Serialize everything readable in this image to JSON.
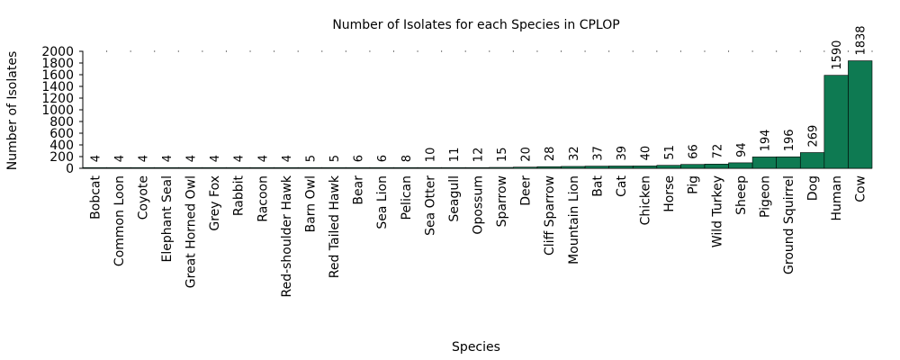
{
  "chart_data": {
    "type": "bar",
    "title": "Number of Isolates for each Species in CPLOP",
    "xlabel": "Species",
    "ylabel": "Number of Isolates",
    "ylim": [
      0,
      2000
    ],
    "yticks": [
      0,
      200,
      400,
      600,
      800,
      1000,
      1200,
      1400,
      1600,
      1800,
      2000
    ],
    "grid": "dotted-top",
    "bar_color": "#0e7a52",
    "categories": [
      "Bobcat",
      "Common Loon",
      "Coyote",
      "Elephant Seal",
      "Great Horned Owl",
      "Grey Fox",
      "Rabbit",
      "Racoon",
      "Red-shoulder Hawk",
      "Barn Owl",
      "Red Tailed Hawk",
      "Bear",
      "Sea Lion",
      "Pelican",
      "Sea Otter",
      "Seagull",
      "Opossum",
      "Sparrow",
      "Deer",
      "Cliff Sparrow",
      "Mountain Lion",
      "Bat",
      "Cat",
      "Chicken",
      "Horse",
      "Pig",
      "Wild Turkey",
      "Sheep",
      "Pigeon",
      "Ground Squirrel",
      "Dog",
      "Human",
      "Cow"
    ],
    "values": [
      4,
      4,
      4,
      4,
      4,
      4,
      4,
      4,
      4,
      5,
      5,
      6,
      6,
      8,
      10,
      11,
      12,
      15,
      20,
      28,
      32,
      37,
      39,
      40,
      51,
      66,
      72,
      94,
      194,
      196,
      269,
      1590,
      1838
    ]
  }
}
